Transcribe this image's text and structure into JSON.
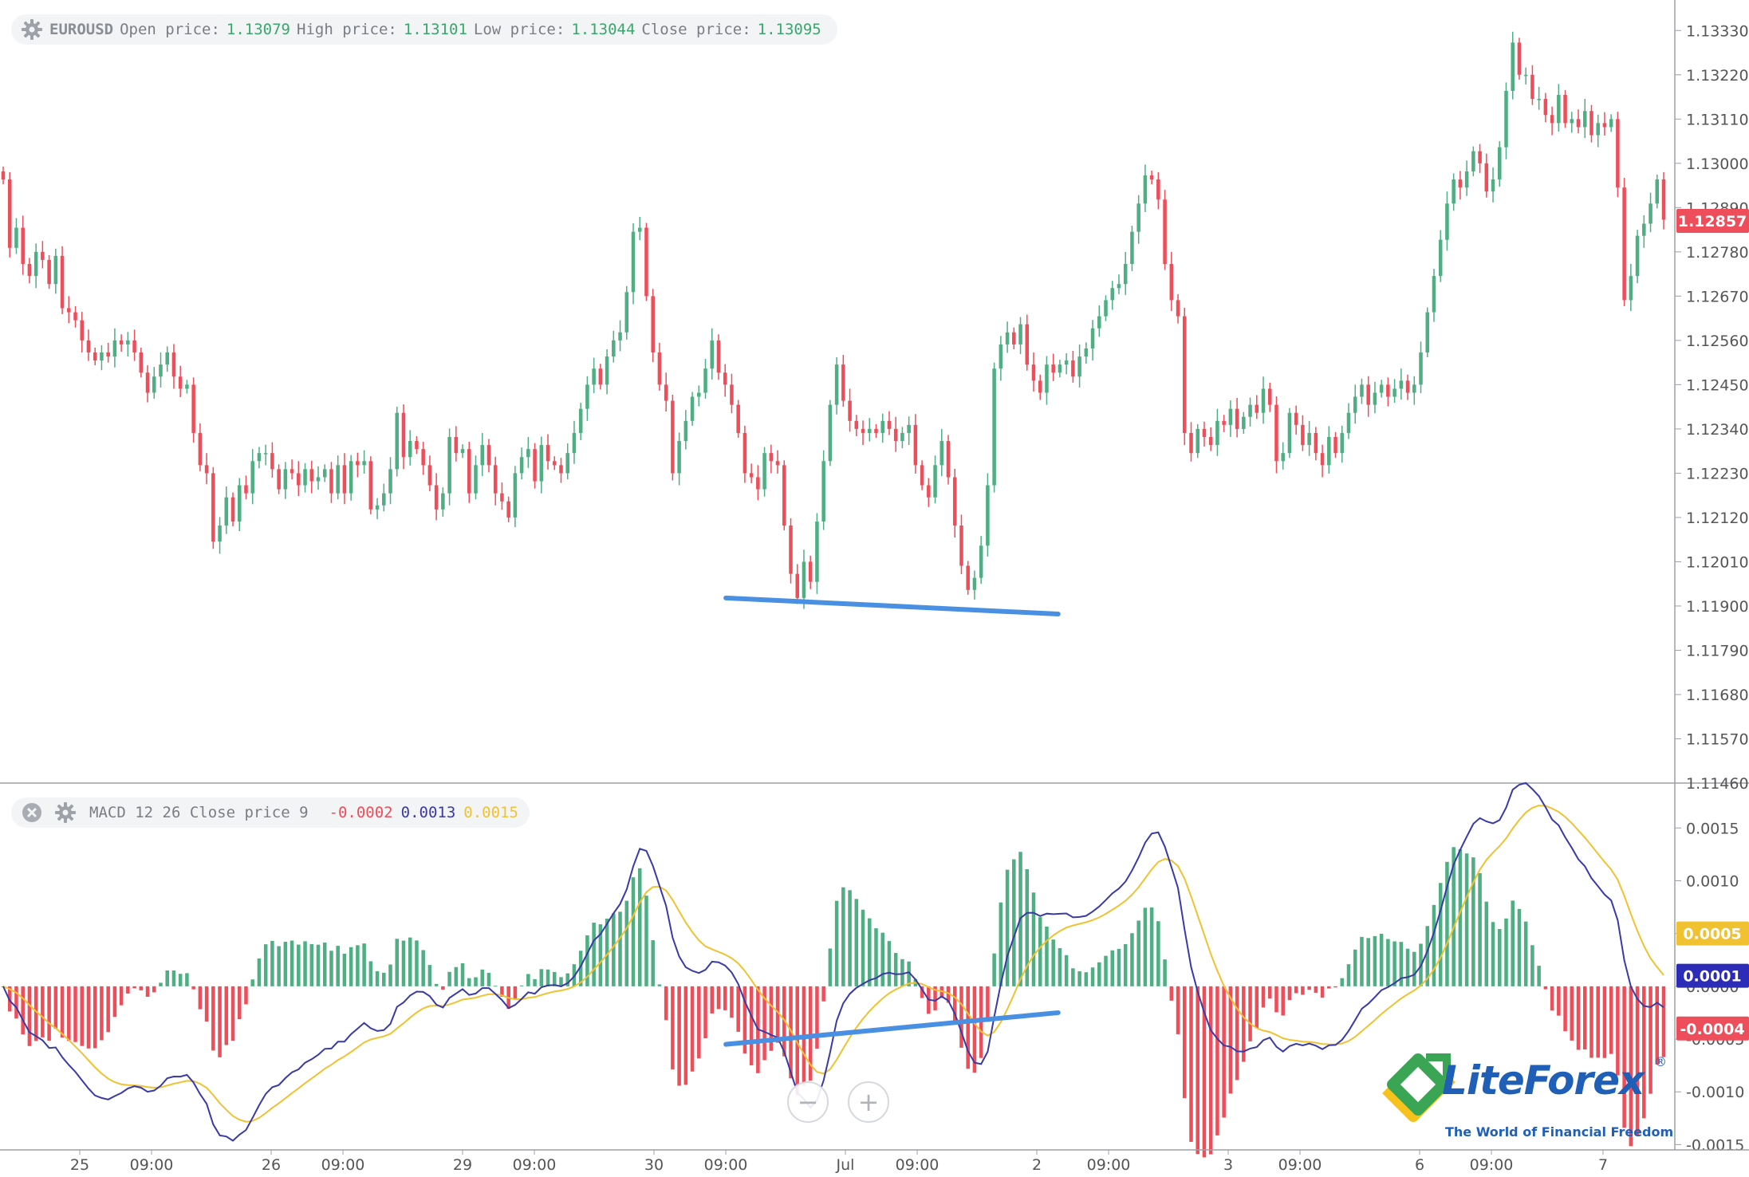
{
  "price_legend": {
    "symbol": "EUROUSD",
    "fields": [
      {
        "label": "Open price:",
        "value": "1.13079"
      },
      {
        "label": "High price:",
        "value": "1.13101"
      },
      {
        "label": "Low price:",
        "value": "1.13044"
      },
      {
        "label": "Close price:",
        "value": "1.13095"
      }
    ]
  },
  "macd_legend": {
    "name": "MACD 12 26 Close price 9",
    "hist_value": "-0.0002",
    "macd_value": "0.0013",
    "signal_value": "0.0015"
  },
  "colors": {
    "up": "#4fae83",
    "down": "#ee4d5a",
    "macd_line": "#3a3aa6",
    "signal_line": "#f0c232",
    "trendline": "#4a90e2",
    "axis_text": "#555555",
    "badge_price": "#ee4d5a",
    "badge_signal": "#f0c232",
    "badge_macd": "#2c2cb8",
    "badge_hist": "#ee4d5a"
  },
  "zoom_controls": {
    "zoom_out": "−",
    "zoom_in": "+"
  },
  "branding": {
    "name": "LiteForex",
    "tagline": "The World of Financial Freedom",
    "registered": "®"
  },
  "chart_data": [
    {
      "type": "candlestick",
      "title": "EUROUSD",
      "ylim": [
        1.1146,
        1.1339
      ],
      "y_ticks": [
        "1.13330",
        "1.13220",
        "1.13110",
        "1.13000",
        "1.12890",
        "1.12780",
        "1.12670",
        "1.12560",
        "1.12450",
        "1.12340",
        "1.12230",
        "1.12120",
        "1.12010",
        "1.11900",
        "1.11790",
        "1.11680",
        "1.11570",
        "1.11460"
      ],
      "x_ticks": [
        "25",
        "09:00",
        "26",
        "09:00",
        "29",
        "09:00",
        "30",
        "09:00",
        "Jul",
        "09:00",
        "2",
        "09:00",
        "3",
        "09:00",
        "6",
        "09:00",
        "7"
      ],
      "current_price_label": "1.12857",
      "candles_close": [
        1.1296,
        1.1279,
        1.1284,
        1.1275,
        1.1272,
        1.1278,
        1.1276,
        1.127,
        1.1277,
        1.1264,
        1.1263,
        1.1261,
        1.1256,
        1.1253,
        1.1251,
        1.1253,
        1.1252,
        1.1256,
        1.1255,
        1.1256,
        1.1253,
        1.1248,
        1.1243,
        1.1247,
        1.125,
        1.1253,
        1.1247,
        1.1244,
        1.1245,
        1.1233,
        1.1225,
        1.1223,
        1.1206,
        1.121,
        1.1217,
        1.1211,
        1.122,
        1.1218,
        1.1226,
        1.1228,
        1.1228,
        1.1224,
        1.1219,
        1.1224,
        1.1223,
        1.122,
        1.1224,
        1.1221,
        1.1222,
        1.1224,
        1.1218,
        1.1225,
        1.1218,
        1.1226,
        1.1225,
        1.1226,
        1.1214,
        1.1215,
        1.1218,
        1.1224,
        1.1238,
        1.1227,
        1.1231,
        1.1229,
        1.1225,
        1.122,
        1.1214,
        1.1218,
        1.1232,
        1.1228,
        1.1229,
        1.1218,
        1.1225,
        1.123,
        1.1225,
        1.1218,
        1.1216,
        1.1212,
        1.1223,
        1.1227,
        1.1229,
        1.1221,
        1.123,
        1.1226,
        1.1225,
        1.1223,
        1.1228,
        1.1233,
        1.1239,
        1.1245,
        1.1249,
        1.1245,
        1.1252,
        1.1256,
        1.1258,
        1.1268,
        1.1283,
        1.1284,
        1.1267,
        1.1253,
        1.1245,
        1.1241,
        1.1223,
        1.1231,
        1.1236,
        1.1242,
        1.1243,
        1.1249,
        1.1256,
        1.1248,
        1.1245,
        1.124,
        1.1233,
        1.1223,
        1.1222,
        1.1219,
        1.1228,
        1.1226,
        1.1225,
        1.121,
        1.1198,
        1.1192,
        1.1201,
        1.1196,
        1.1211,
        1.1226,
        1.124,
        1.125,
        1.1241,
        1.1236,
        1.1234,
        1.1233,
        1.1234,
        1.1233,
        1.1236,
        1.1234,
        1.1231,
        1.1233,
        1.1235,
        1.1225,
        1.122,
        1.1217,
        1.1225,
        1.1231,
        1.1222,
        1.121,
        1.12,
        1.1194,
        1.1197,
        1.1205,
        1.122,
        1.1249,
        1.1255,
        1.1258,
        1.1255,
        1.126,
        1.125,
        1.1246,
        1.1243,
        1.125,
        1.1248,
        1.125,
        1.1251,
        1.1247,
        1.1252,
        1.1254,
        1.1259,
        1.1262,
        1.1266,
        1.1269,
        1.127,
        1.1275,
        1.1283,
        1.129,
        1.1297,
        1.1296,
        1.1291,
        1.1275,
        1.1266,
        1.1262,
        1.1233,
        1.1228,
        1.1234,
        1.1232,
        1.123,
        1.1236,
        1.1235,
        1.1239,
        1.1234,
        1.1237,
        1.124,
        1.1238,
        1.1244,
        1.124,
        1.1226,
        1.1228,
        1.1238,
        1.1235,
        1.123,
        1.1233,
        1.1228,
        1.1225,
        1.1232,
        1.1228,
        1.1233,
        1.1238,
        1.1242,
        1.1245,
        1.124,
        1.1243,
        1.1245,
        1.1242,
        1.1244,
        1.1246,
        1.1243,
        1.1245,
        1.1253,
        1.1263,
        1.1272,
        1.1281,
        1.129,
        1.1296,
        1.1294,
        1.1298,
        1.1303,
        1.13,
        1.1293,
        1.1296,
        1.1304,
        1.1318,
        1.133,
        1.1322,
        1.1322,
        1.1316,
        1.1316,
        1.1312,
        1.131,
        1.1317,
        1.131,
        1.1311,
        1.1309,
        1.1313,
        1.1307,
        1.131,
        1.1309,
        1.1311,
        1.1294,
        1.1266,
        1.1272,
        1.1282,
        1.1285,
        1.129,
        1.1296,
        1.1286
      ],
      "annotations": [
        {
          "type": "trendline",
          "from": [
            0.415,
            1.1192
          ],
          "to": [
            0.605,
            1.1188
          ]
        }
      ]
    },
    {
      "type": "macd",
      "title": "MACD 12 26 Close price 9",
      "ylim": [
        -0.00155,
        0.00185
      ],
      "y_ticks": [
        "0.0015",
        "0.0010",
        "0.0005",
        "0.0000",
        "-0.0005",
        "-0.0010",
        "-0.0015"
      ],
      "value_badges": {
        "signal": "0.0005",
        "macd": "0.0001",
        "histogram": "-0.0004"
      },
      "annotations": [
        {
          "type": "trendline",
          "from": [
            0.415,
            -0.00055
          ],
          "to": [
            0.605,
            -0.00025
          ]
        }
      ]
    }
  ]
}
